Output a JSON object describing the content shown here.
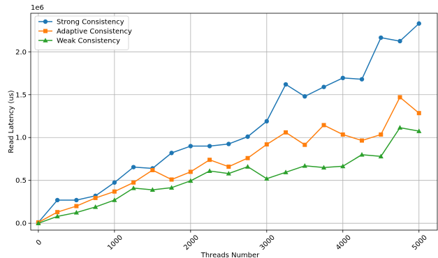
{
  "chart_data": {
    "type": "line",
    "title": "",
    "xlabel": "Threads Number",
    "ylabel": "Read Latency (us)",
    "y_offset_label": "1e6",
    "xlim": [
      -100,
      5250
    ],
    "ylim": [
      -80000,
      2450000
    ],
    "grid": true,
    "legend_position": "top-left",
    "x_ticks": [
      {
        "value": 0,
        "label": "0"
      },
      {
        "value": 1000,
        "label": "1000"
      },
      {
        "value": 2000,
        "label": "2000"
      },
      {
        "value": 3000,
        "label": "3000"
      },
      {
        "value": 4000,
        "label": "4000"
      },
      {
        "value": 5000,
        "label": "5000"
      }
    ],
    "y_ticks": [
      {
        "value": 0,
        "label": "0.0"
      },
      {
        "value": 500000,
        "label": "0.5"
      },
      {
        "value": 1000000,
        "label": "1.0"
      },
      {
        "value": 1500000,
        "label": "1.5"
      },
      {
        "value": 2000000,
        "label": "2.0"
      }
    ],
    "x": [
      0,
      250,
      500,
      750,
      1000,
      1250,
      1500,
      1750,
      2000,
      2250,
      2500,
      2750,
      3000,
      3250,
      3500,
      3750,
      4000,
      4250,
      4500,
      4750,
      5000
    ],
    "series": [
      {
        "name": "Strong Consistency",
        "color": "#1f77b4",
        "marker": "circle",
        "values": [
          10000,
          270000,
          270000,
          320000,
          475000,
          655000,
          640000,
          820000,
          900000,
          900000,
          925000,
          1010000,
          1190000,
          1620000,
          1480000,
          1590000,
          1695000,
          1680000,
          2165000,
          2125000,
          2330000
        ]
      },
      {
        "name": "Adaptive Consistency",
        "color": "#ff7f0e",
        "marker": "square",
        "values": [
          10000,
          130000,
          200000,
          295000,
          370000,
          475000,
          620000,
          510000,
          600000,
          740000,
          660000,
          760000,
          920000,
          1060000,
          915000,
          1145000,
          1035000,
          965000,
          1035000,
          1470000,
          1285000
        ]
      },
      {
        "name": "Weak Consistency",
        "color": "#2ca02c",
        "marker": "triangle",
        "values": [
          0,
          80000,
          125000,
          190000,
          270000,
          410000,
          390000,
          415000,
          495000,
          610000,
          580000,
          660000,
          520000,
          595000,
          670000,
          650000,
          665000,
          800000,
          780000,
          1115000,
          1075000
        ]
      }
    ]
  }
}
